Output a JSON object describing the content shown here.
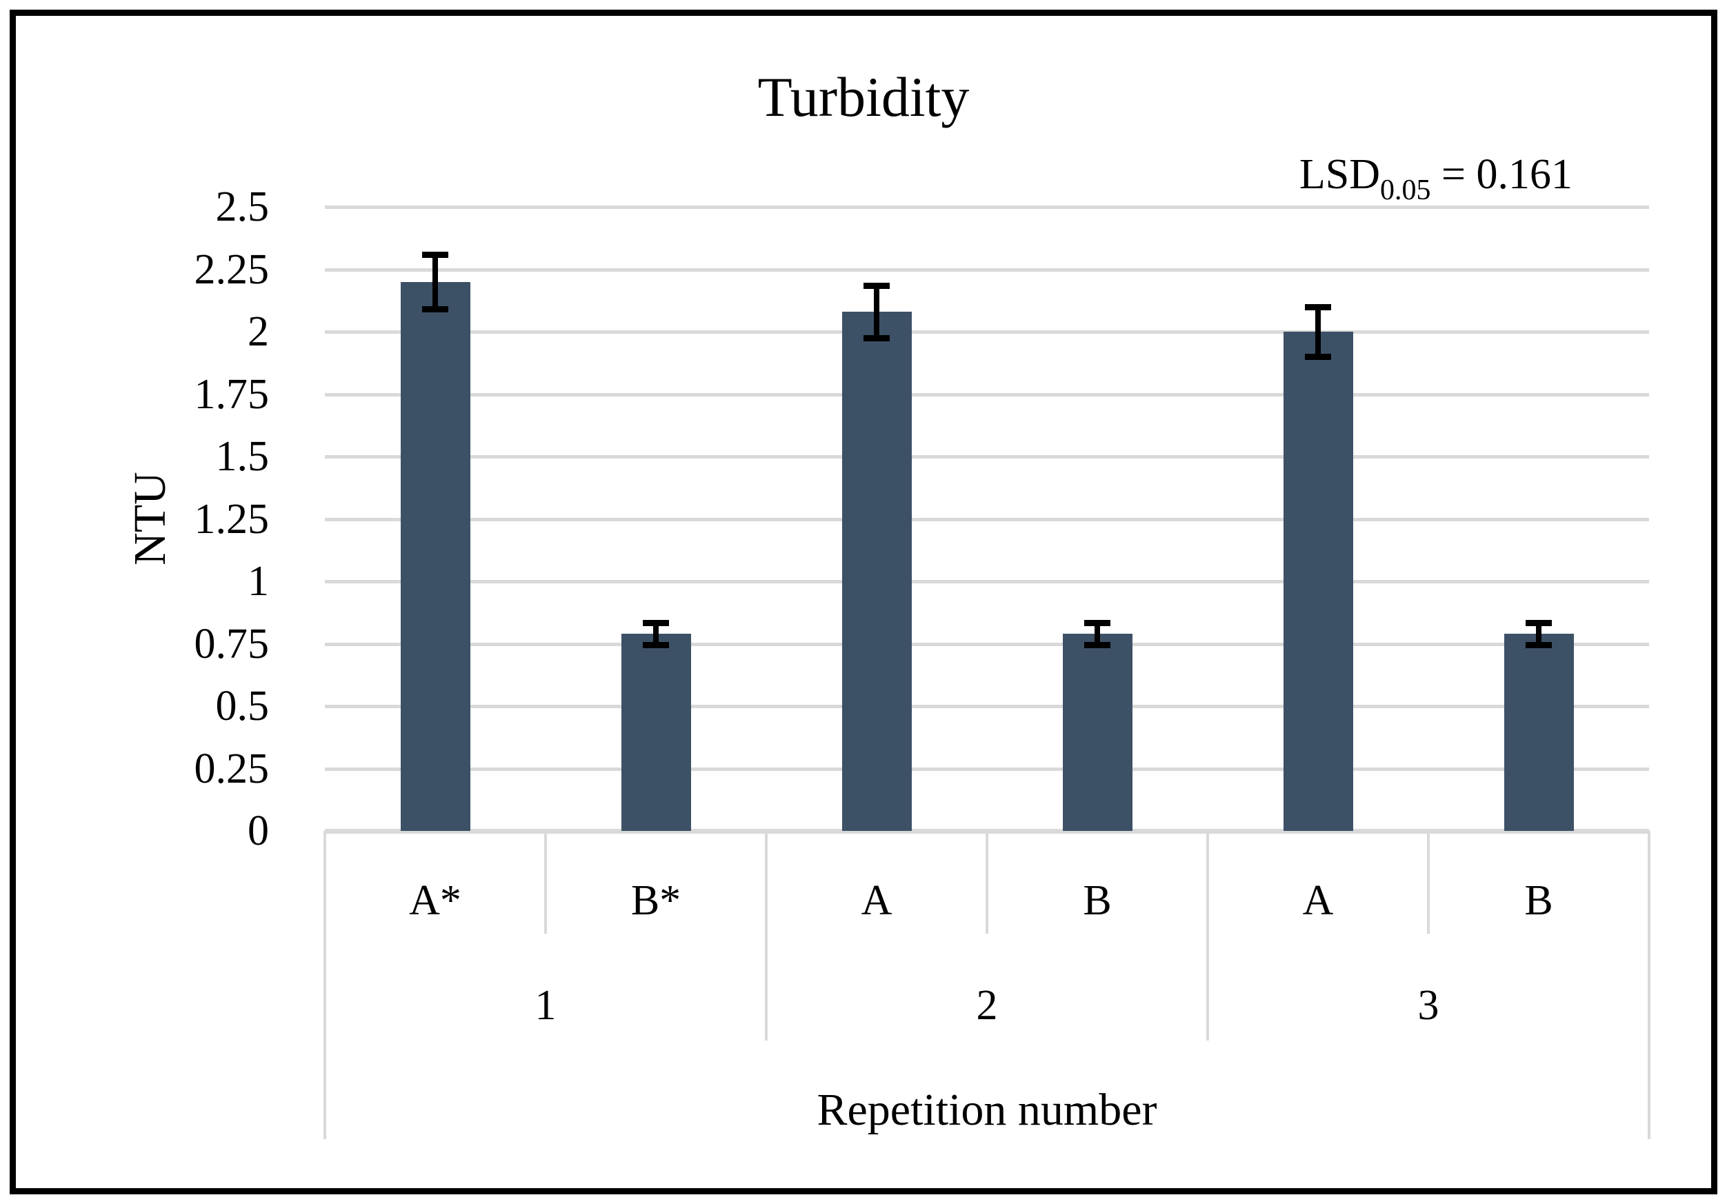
{
  "figure": {
    "border_color": "#000000",
    "background": "#ffffff"
  },
  "chart_data": {
    "type": "bar",
    "title": "Turbidity",
    "ylabel": "NTU",
    "xlabel": "Repetition number",
    "ylim": [
      0,
      2.5
    ],
    "ytick_step": 0.25,
    "ytick_labels": [
      "0",
      "0.25",
      "0.5",
      "0.75",
      "1",
      "1.25",
      "1.5",
      "1.75",
      "2",
      "2.25",
      "2.5"
    ],
    "grid": true,
    "legend": null,
    "annotation": {
      "prefix": "LSD",
      "subscript": "0.05",
      "rest": " = 0.161"
    },
    "bar_color": "#3D5166",
    "gridline_color": "#D9D9D9",
    "error_bar_color": "#000000",
    "groups": [
      {
        "label": "1",
        "bars": [
          {
            "label": "A*",
            "value": 2.2,
            "error": 0.11
          },
          {
            "label": "B*",
            "value": 0.79,
            "error": 0.045
          }
        ]
      },
      {
        "label": "2",
        "bars": [
          {
            "label": "A",
            "value": 2.08,
            "error": 0.105
          },
          {
            "label": "B",
            "value": 0.79,
            "error": 0.045
          }
        ]
      },
      {
        "label": "3",
        "bars": [
          {
            "label": "A",
            "value": 2.0,
            "error": 0.1
          },
          {
            "label": "B",
            "value": 0.79,
            "error": 0.045
          }
        ]
      }
    ]
  }
}
